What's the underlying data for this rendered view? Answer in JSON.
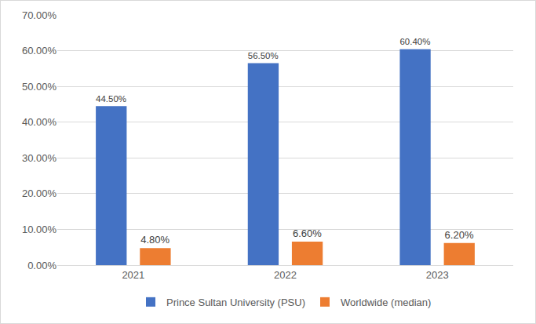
{
  "chart_data": {
    "type": "bar",
    "categories": [
      "2021",
      "2022",
      "2023"
    ],
    "series": [
      {
        "name": "Prince Sultan University (PSU)",
        "color": "#4472c4",
        "values": [
          44.5,
          56.5,
          60.4
        ],
        "value_labels": [
          "44.50%",
          "56.50%",
          "60.40%"
        ]
      },
      {
        "name": "Worldwide (median)",
        "color": "#ed7d31",
        "values": [
          4.8,
          6.6,
          6.2
        ],
        "value_labels": [
          "4.80%",
          "6.60%",
          "6.20%"
        ]
      }
    ],
    "ylim": [
      0,
      70
    ],
    "yticks": [
      {
        "value": 0,
        "label": "0.00%"
      },
      {
        "value": 10,
        "label": "10.00%"
      },
      {
        "value": 20,
        "label": "20.00%"
      },
      {
        "value": 30,
        "label": "30.00%"
      },
      {
        "value": 40,
        "label": "40.00%"
      },
      {
        "value": 50,
        "label": "50.00%"
      },
      {
        "value": 60,
        "label": "60.00%"
      },
      {
        "value": 70,
        "label": "70.00%"
      }
    ],
    "grid": true,
    "legend": "bottom",
    "data_labels": true
  }
}
